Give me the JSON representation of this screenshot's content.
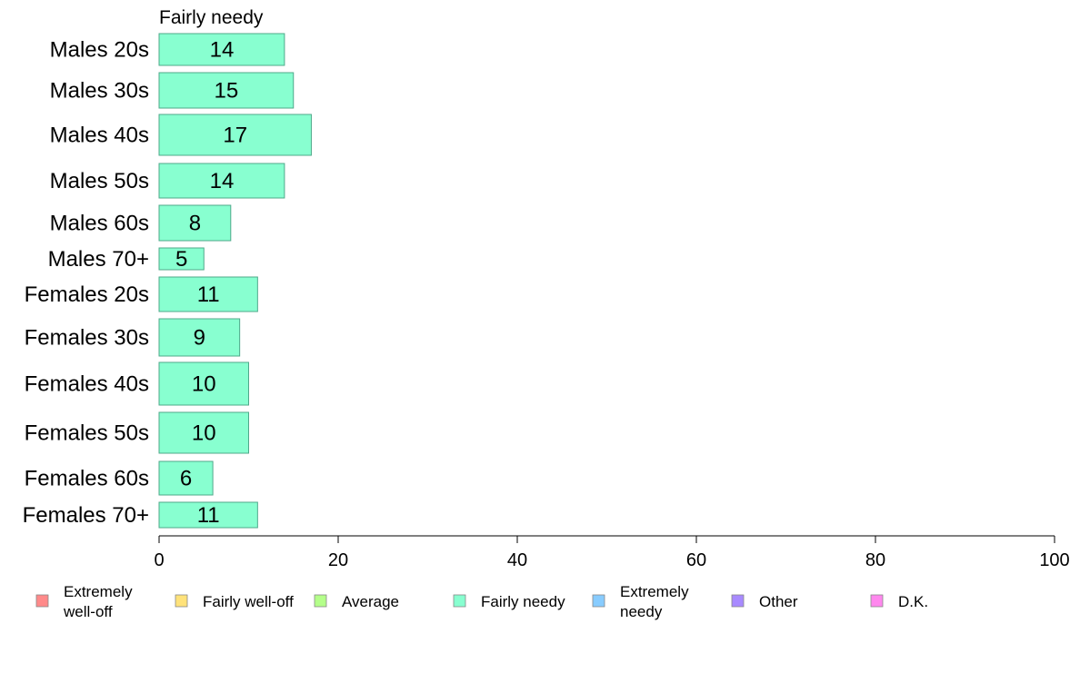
{
  "chart_data": {
    "type": "bar",
    "orientation": "horizontal",
    "title": "Fairly needy",
    "categories": [
      "Males 20s",
      "Males 30s",
      "Males 40s",
      "Males 50s",
      "Males 60s",
      "Males 70+",
      "Females 20s",
      "Females 30s",
      "Females 40s",
      "Females 50s",
      "Females 60s",
      "Females 70+"
    ],
    "values": [
      14,
      15,
      17,
      14,
      8,
      5,
      11,
      9,
      10,
      10,
      6,
      11
    ],
    "data_labels": [
      "14",
      "15",
      "17",
      "14",
      "8",
      "5",
      "11",
      "9",
      "10",
      "10",
      "6",
      "11"
    ],
    "bar_color": "#88ffd0",
    "bar_edge_color": "#4fa88a",
    "xlim": [
      0,
      100
    ],
    "xticks": [
      0,
      20,
      40,
      60,
      80,
      100
    ],
    "xtick_labels": [
      "0",
      "20",
      "40",
      "60",
      "80",
      "100"
    ],
    "grid": false,
    "legend_position": "bottom",
    "legend": [
      {
        "label": "Extremely well-off",
        "color": "#ff8a8a"
      },
      {
        "label": "Fairly well-off",
        "color": "#ffe27a"
      },
      {
        "label": "Average",
        "color": "#b4ff8a"
      },
      {
        "label": "Fairly needy",
        "color": "#88ffd0"
      },
      {
        "label": "Extremely needy",
        "color": "#88ccff"
      },
      {
        "label": "Other",
        "color": "#a88aff"
      },
      {
        "label": "D.K.",
        "color": "#ff88ee"
      }
    ]
  }
}
